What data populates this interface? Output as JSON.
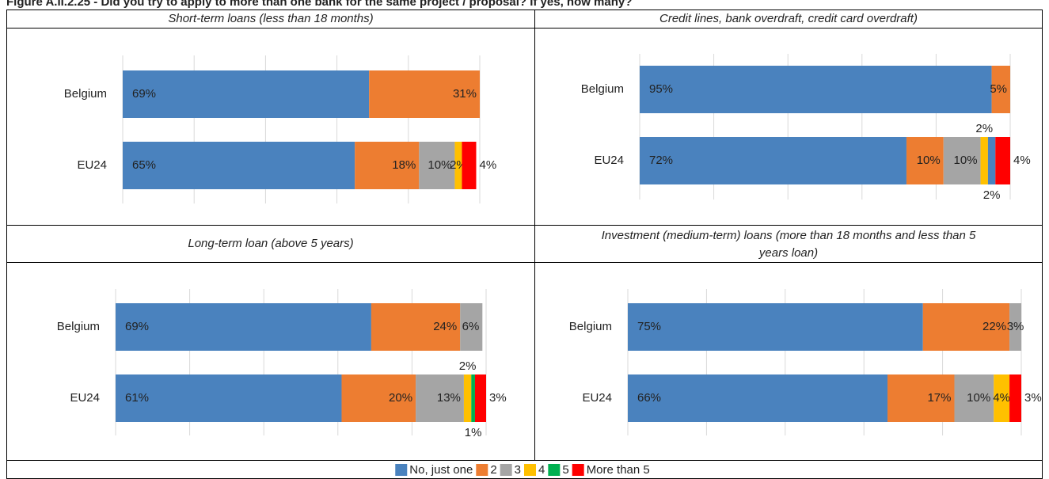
{
  "figure_title": "Figure A.II.2.25 - Did you try to apply to more than one bank for the same project / proposal? If yes, how many?",
  "chart_data": [
    {
      "type": "bar",
      "orientation": "horizontal",
      "stacked": true,
      "title": "Short-term loans (less than 18 months)",
      "categories": [
        "Belgium",
        "EU24"
      ],
      "xlim": [
        0,
        100
      ],
      "xticks": [
        0,
        20,
        40,
        60,
        80,
        100
      ],
      "grid": true,
      "series": [
        {
          "name": "No, just one",
          "color": "#4a82be",
          "values": [
            69,
            65
          ],
          "value_labels": [
            "69%",
            "65%"
          ]
        },
        {
          "name": "2",
          "color": "#ed7d31",
          "values": [
            31,
            18
          ],
          "value_labels": [
            "31%",
            "18%"
          ]
        },
        {
          "name": "3",
          "color": "#a5a5a5",
          "values": [
            0,
            10
          ],
          "value_labels": [
            null,
            "10%"
          ]
        },
        {
          "name": "4",
          "color": "#ffc000",
          "values": [
            0,
            2
          ],
          "value_labels": [
            null,
            "2%"
          ]
        },
        {
          "name": "5",
          "color": "#00b050",
          "values": [
            0,
            0
          ],
          "value_labels": [
            null,
            null
          ]
        },
        {
          "name": "More than 5",
          "color": "#ff0000",
          "values": [
            0,
            4
          ],
          "value_labels": [
            null,
            "4%"
          ]
        }
      ]
    },
    {
      "type": "bar",
      "orientation": "horizontal",
      "stacked": true,
      "title": "Credit lines, bank overdraft, credit card overdraft)",
      "categories": [
        "Belgium",
        "EU24"
      ],
      "xlim": [
        0,
        100
      ],
      "xticks": [
        0,
        20,
        40,
        60,
        80,
        100
      ],
      "grid": true,
      "series": [
        {
          "name": "No, just one",
          "color": "#4a82be",
          "values": [
            95,
            72
          ],
          "value_labels": [
            "95%",
            "72%"
          ]
        },
        {
          "name": "2",
          "color": "#ed7d31",
          "values": [
            5,
            10
          ],
          "value_labels": [
            "5%",
            "10%"
          ]
        },
        {
          "name": "3",
          "color": "#a5a5a5",
          "values": [
            0,
            10
          ],
          "value_labels": [
            null,
            "10%"
          ]
        },
        {
          "name": "4",
          "color": "#ffc000",
          "values": [
            0,
            2
          ],
          "value_labels": [
            null,
            "2%"
          ]
        },
        {
          "name": "5",
          "color": "#4a82be",
          "values": [
            0,
            2
          ],
          "value_labels": [
            null,
            "2%"
          ]
        },
        {
          "name": "More than 5",
          "color": "#ff0000",
          "values": [
            0,
            4
          ],
          "value_labels": [
            null,
            "4%"
          ]
        }
      ]
    },
    {
      "type": "bar",
      "orientation": "horizontal",
      "stacked": true,
      "title": "Long-term loan (above 5 years)",
      "categories": [
        "Belgium",
        "EU24"
      ],
      "xlim": [
        0,
        100
      ],
      "xticks": [
        0,
        20,
        40,
        60,
        80,
        100
      ],
      "grid": true,
      "series": [
        {
          "name": "No, just one",
          "color": "#4a82be",
          "values": [
            69,
            61
          ],
          "value_labels": [
            "69%",
            "61%"
          ]
        },
        {
          "name": "2",
          "color": "#ed7d31",
          "values": [
            24,
            20
          ],
          "value_labels": [
            "24%",
            "20%"
          ]
        },
        {
          "name": "3",
          "color": "#a5a5a5",
          "values": [
            6,
            13
          ],
          "value_labels": [
            "6%",
            "13%"
          ]
        },
        {
          "name": "4",
          "color": "#ffc000",
          "values": [
            0,
            2
          ],
          "value_labels": [
            null,
            "2%"
          ]
        },
        {
          "name": "5",
          "color": "#00b050",
          "values": [
            0,
            1
          ],
          "value_labels": [
            null,
            "1%"
          ]
        },
        {
          "name": "More than 5",
          "color": "#ff0000",
          "values": [
            0,
            3
          ],
          "value_labels": [
            null,
            "3%"
          ]
        }
      ]
    },
    {
      "type": "bar",
      "orientation": "horizontal",
      "stacked": true,
      "title": "Investment (medium-term) loans (more than 18 months and less than 5 years loan)",
      "categories": [
        "Belgium",
        "EU24"
      ],
      "xlim": [
        0,
        100
      ],
      "xticks": [
        0,
        20,
        40,
        60,
        80,
        100
      ],
      "grid": true,
      "series": [
        {
          "name": "No, just one",
          "color": "#4a82be",
          "values": [
            75,
            66
          ],
          "value_labels": [
            "75%",
            "66%"
          ]
        },
        {
          "name": "2",
          "color": "#ed7d31",
          "values": [
            22,
            17
          ],
          "value_labels": [
            "22%",
            "17%"
          ]
        },
        {
          "name": "3",
          "color": "#a5a5a5",
          "values": [
            3,
            10
          ],
          "value_labels": [
            "3%",
            "10%"
          ]
        },
        {
          "name": "4",
          "color": "#ffc000",
          "values": [
            0,
            4
          ],
          "value_labels": [
            null,
            "4%"
          ]
        },
        {
          "name": "5",
          "color": "#00b050",
          "values": [
            0,
            0
          ],
          "value_labels": [
            null,
            null
          ]
        },
        {
          "name": "More than 5",
          "color": "#ff0000",
          "values": [
            0,
            3
          ],
          "value_labels": [
            null,
            "3%"
          ]
        }
      ]
    }
  ]
}
